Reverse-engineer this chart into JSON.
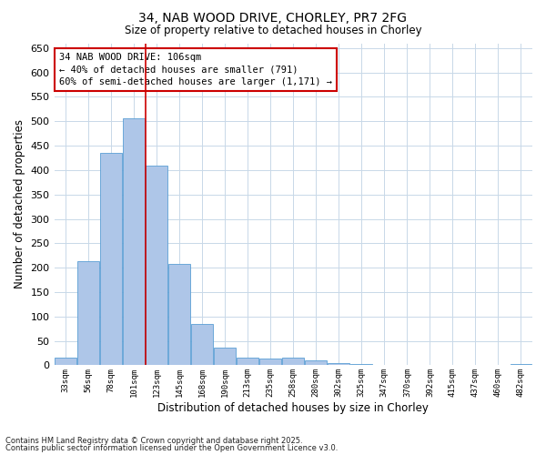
{
  "title": "34, NAB WOOD DRIVE, CHORLEY, PR7 2FG",
  "subtitle": "Size of property relative to detached houses in Chorley",
  "xlabel": "Distribution of detached houses by size in Chorley",
  "ylabel": "Number of detached properties",
  "footnote1": "Contains HM Land Registry data © Crown copyright and database right 2025.",
  "footnote2": "Contains public sector information licensed under the Open Government Licence v3.0.",
  "annotation_title": "34 NAB WOOD DRIVE: 106sqm",
  "annotation_line1": "← 40% of detached houses are smaller (791)",
  "annotation_line2": "60% of semi-detached houses are larger (1,171) →",
  "categories": [
    "33sqm",
    "56sqm",
    "78sqm",
    "101sqm",
    "123sqm",
    "145sqm",
    "168sqm",
    "190sqm",
    "213sqm",
    "235sqm",
    "258sqm",
    "280sqm",
    "302sqm",
    "325sqm",
    "347sqm",
    "370sqm",
    "392sqm",
    "415sqm",
    "437sqm",
    "460sqm",
    "482sqm"
  ],
  "values": [
    15,
    213,
    435,
    507,
    410,
    207,
    85,
    37,
    15,
    14,
    15,
    10,
    5,
    3,
    1,
    1,
    1,
    0,
    0,
    0,
    3
  ],
  "bar_color": "#aec6e8",
  "bar_edge_color": "#5a9fd4",
  "vline_color": "#cc0000",
  "vline_x_index": 3.5,
  "annotation_box_color": "#cc0000",
  "annotation_box_fill": "#ffffff",
  "background_color": "#ffffff",
  "grid_color": "#c8d8e8",
  "ylim": [
    0,
    660
  ],
  "yticks": [
    0,
    50,
    100,
    150,
    200,
    250,
    300,
    350,
    400,
    450,
    500,
    550,
    600,
    650
  ]
}
